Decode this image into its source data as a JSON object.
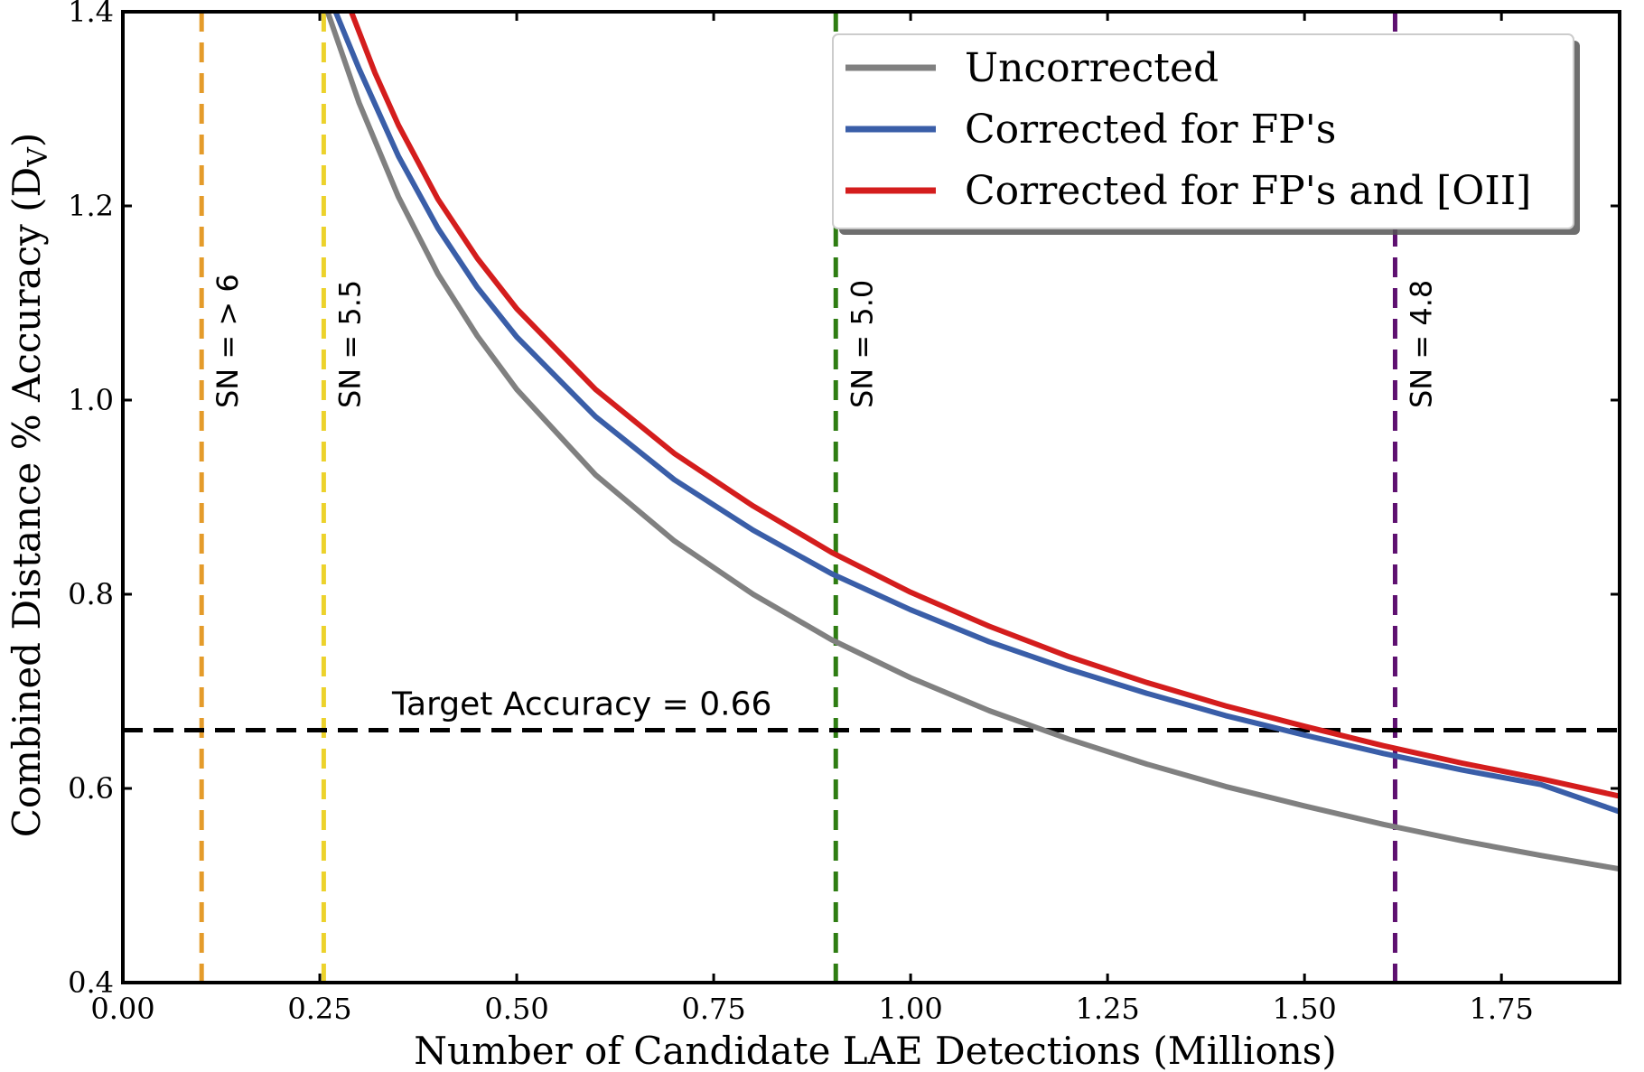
{
  "chart_data": {
    "type": "line",
    "xlabel": "Number of Candidate LAE Detections (Millions)",
    "ylabel_main": "Combined Distance % Accuracy (D",
    "ylabel_sub": "V",
    "ylabel_close": ")",
    "xlim": [
      0.0,
      1.9
    ],
    "ylim": [
      0.4,
      1.4
    ],
    "xticks": [
      0.0,
      0.25,
      0.5,
      0.75,
      1.0,
      1.25,
      1.5,
      1.75
    ],
    "xtick_labels": [
      "0.00",
      "0.25",
      "0.50",
      "0.75",
      "1.00",
      "1.25",
      "1.50",
      "1.75"
    ],
    "yticks": [
      0.4,
      0.6,
      0.8,
      1.0,
      1.2,
      1.4
    ],
    "ytick_labels": [
      "0.4",
      "0.6",
      "0.8",
      "1.0",
      "1.2",
      "1.4"
    ],
    "grid": false,
    "legend_position": "top-right",
    "series": [
      {
        "name": "Uncorrected",
        "color": "#808080",
        "x": [
          0.26,
          0.3,
          0.35,
          0.4,
          0.45,
          0.5,
          0.6,
          0.7,
          0.8,
          0.9,
          1.0,
          1.1,
          1.2,
          1.3,
          1.4,
          1.5,
          1.6,
          1.7,
          1.8,
          1.9
        ],
        "y": [
          1.4,
          1.306,
          1.209,
          1.13,
          1.066,
          1.011,
          0.923,
          0.855,
          0.8,
          0.753,
          0.714,
          0.68,
          0.651,
          0.625,
          0.602,
          0.582,
          0.563,
          0.546,
          0.531,
          0.517
        ]
      },
      {
        "name": "Corrected for FP's",
        "color": "#3a5ea8",
        "x": [
          0.27,
          0.3,
          0.35,
          0.4,
          0.45,
          0.5,
          0.6,
          0.7,
          0.8,
          0.9,
          1.0,
          1.1,
          1.2,
          1.3,
          1.4,
          1.5,
          1.6,
          1.7,
          1.8,
          1.9
        ],
        "y": [
          1.4,
          1.341,
          1.251,
          1.177,
          1.116,
          1.065,
          0.983,
          0.918,
          0.866,
          0.821,
          0.784,
          0.751,
          0.723,
          0.698,
          0.675,
          0.655,
          0.636,
          0.619,
          0.604,
          0.576
        ]
      },
      {
        "name": "Corrected for FP's and [OII]",
        "color": "#d41d1d",
        "x": [
          0.29,
          0.32,
          0.35,
          0.4,
          0.45,
          0.5,
          0.6,
          0.7,
          0.8,
          0.9,
          1.0,
          1.1,
          1.2,
          1.3,
          1.4,
          1.5,
          1.6,
          1.7,
          1.8,
          1.9
        ],
        "y": [
          1.4,
          1.337,
          1.283,
          1.207,
          1.146,
          1.094,
          1.011,
          0.945,
          0.891,
          0.843,
          0.802,
          0.767,
          0.736,
          0.709,
          0.685,
          0.664,
          0.644,
          0.626,
          0.61,
          0.592
        ]
      }
    ],
    "vlines": [
      {
        "x": 0.1,
        "label": "SN = > 6",
        "color": "#e49b2a"
      },
      {
        "x": 0.255,
        "label": "SN = 5.5",
        "color": "#ecd22b"
      },
      {
        "x": 0.905,
        "label": "SN = 5.0",
        "color": "#2e7d12"
      },
      {
        "x": 1.615,
        "label": "SN = 4.8",
        "color": "#5e1070"
      }
    ],
    "hline": {
      "y": 0.66,
      "label": "Target Accuracy = 0.66",
      "color": "#000000"
    }
  }
}
